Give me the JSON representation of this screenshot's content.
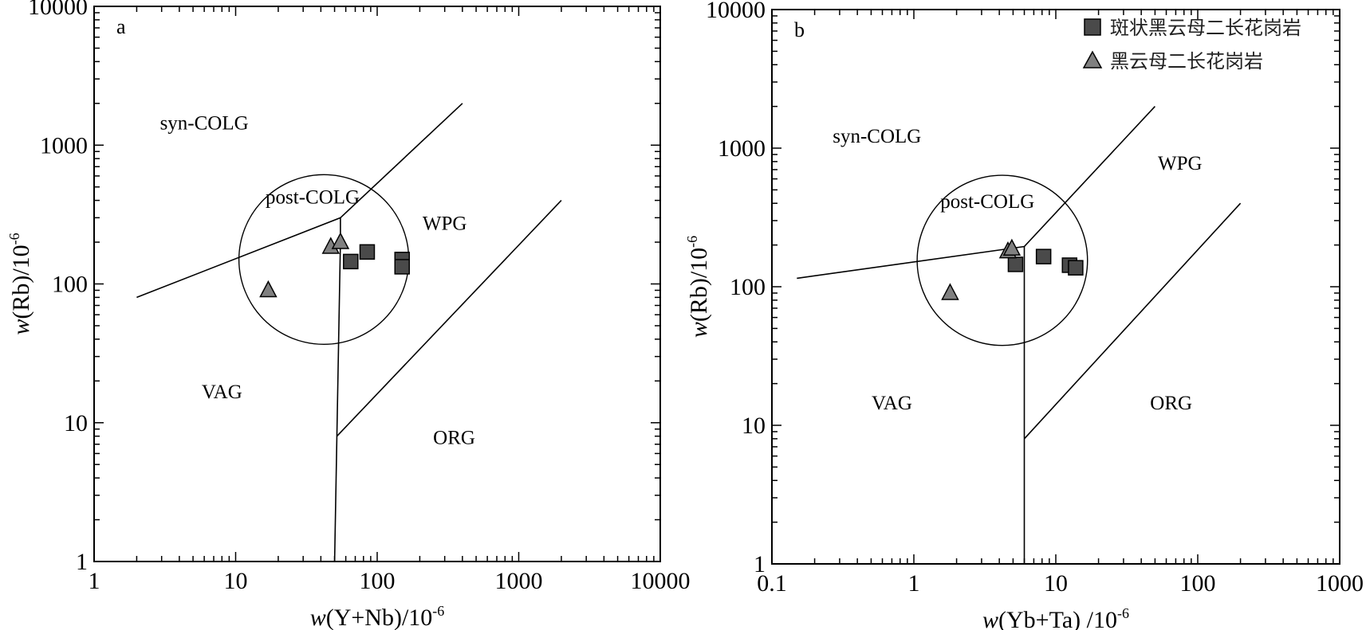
{
  "chart_data": [
    {
      "panel_letter": "a",
      "type": "scatter",
      "scale": {
        "x": "log",
        "y": "log"
      },
      "xlim": [
        1,
        10000
      ],
      "ylim": [
        1,
        10000
      ],
      "x_ticks": [
        "1",
        "10",
        "100",
        "1000",
        "10000"
      ],
      "y_ticks": [
        "1",
        "10",
        "100",
        "1000",
        "10000"
      ],
      "xlabel": {
        "italic": "w",
        "main": "(Y+Nb)/10",
        "sup": "-6"
      },
      "ylabel": {
        "italic": "w",
        "main": "(Rb)/10",
        "sup": "-6"
      },
      "field_labels": [
        {
          "text": "syn-COLG",
          "x": 6,
          "y": 1300
        },
        {
          "text": "post-COLG",
          "x": 35,
          "y": 380
        },
        {
          "text": "WPG",
          "x": 300,
          "y": 245
        },
        {
          "text": "VAG",
          "x": 8,
          "y": 15
        },
        {
          "text": "ORG",
          "x": 350,
          "y": 7
        }
      ],
      "boundary_lines": [
        [
          [
            2,
            80
          ],
          [
            55,
            300
          ],
          [
            400,
            2000
          ]
        ],
        [
          [
            55,
            300
          ],
          [
            55,
            200
          ],
          [
            50,
            1
          ]
        ],
        [
          [
            52,
            8
          ],
          [
            2000,
            400
          ]
        ]
      ],
      "circle": {
        "center_x": 42,
        "center_y": 150,
        "radius_decades": 0.6
      },
      "series": [
        {
          "name": "斑状黑云母二长花岗岩",
          "marker": "square",
          "color": "#4a4a4a",
          "points": [
            [
              65,
              145
            ],
            [
              85,
              170
            ],
            [
              150,
              150
            ],
            [
              150,
              133
            ]
          ]
        },
        {
          "name": "黑云母二长花岗岩",
          "marker": "triangle",
          "color": "#808080",
          "points": [
            [
              17,
              90
            ],
            [
              47,
              185
            ],
            [
              55,
              200
            ]
          ]
        }
      ]
    },
    {
      "panel_letter": "b",
      "type": "scatter",
      "scale": {
        "x": "log",
        "y": "log"
      },
      "xlim": [
        0.1,
        1000
      ],
      "ylim": [
        1,
        10000
      ],
      "x_ticks": [
        "0.1",
        "1",
        "10",
        "100",
        "1000"
      ],
      "y_ticks": [
        "1",
        "10",
        "100",
        "1000",
        "10000"
      ],
      "xlabel": {
        "italic": "w",
        "main": "(Yb+Ta) /10",
        "sup": "-6"
      },
      "ylabel": {
        "italic": "w",
        "main": "(Rb)/10",
        "sup": "-6"
      },
      "field_labels": [
        {
          "text": "syn-COLG",
          "x": 0.55,
          "y": 1100
        },
        {
          "text": "post-COLG",
          "x": 3.3,
          "y": 370
        },
        {
          "text": "WPG",
          "x": 75,
          "y": 700
        },
        {
          "text": "VAG",
          "x": 0.7,
          "y": 13
        },
        {
          "text": "ORG",
          "x": 65,
          "y": 13
        }
      ],
      "boundary_lines": [
        [
          [
            0.15,
            115
          ],
          [
            5,
            190
          ],
          [
            6,
            195
          ],
          [
            50,
            2000
          ]
        ],
        [
          [
            6,
            195
          ],
          [
            6,
            1
          ]
        ],
        [
          [
            6,
            8
          ],
          [
            200,
            400
          ]
        ]
      ],
      "circle": {
        "center_x": 4.2,
        "center_y": 155,
        "radius_decades": 0.6
      },
      "series": [
        {
          "name": "斑状黑云母二长花岗岩",
          "marker": "square",
          "color": "#4a4a4a",
          "points": [
            [
              5.2,
              145
            ],
            [
              8.2,
              165
            ],
            [
              12.5,
              143
            ],
            [
              13.8,
              137
            ]
          ]
        },
        {
          "name": "黑云母二长花岗岩",
          "marker": "triangle",
          "color": "#808080",
          "points": [
            [
              1.8,
              90
            ],
            [
              4.6,
              180
            ],
            [
              4.9,
              188
            ]
          ]
        }
      ],
      "legend": {
        "position": "top-right",
        "items": [
          {
            "label": "斑状黑云母二长花岗岩",
            "marker": "square",
            "color": "#4a4a4a"
          },
          {
            "label": "黑云母二长花岗岩",
            "marker": "triangle",
            "color": "#808080"
          }
        ]
      }
    }
  ]
}
